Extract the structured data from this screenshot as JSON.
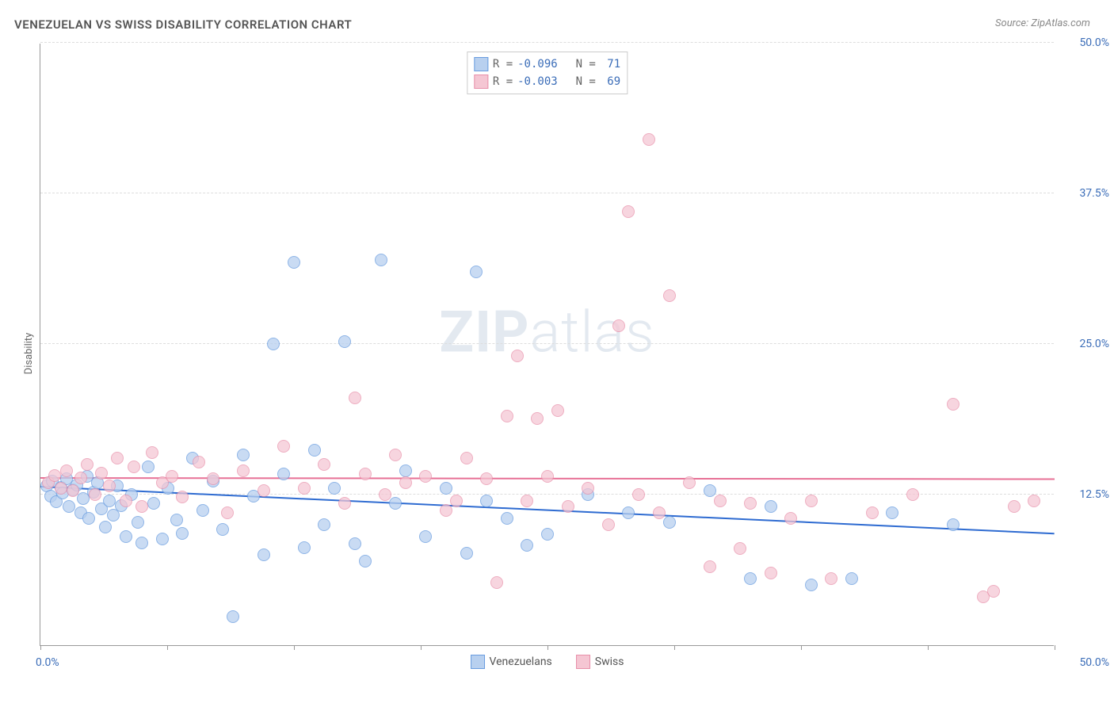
{
  "title": "VENEZUELAN VS SWISS DISABILITY CORRELATION CHART",
  "source": "Source: ZipAtlas.com",
  "yaxis_label": "Disability",
  "watermark_bold": "ZIP",
  "watermark_light": "atlas",
  "chart": {
    "type": "scatter",
    "xlim": [
      0,
      50
    ],
    "ylim": [
      0,
      50
    ],
    "x_min_label": "0.0%",
    "x_max_label": "50.0%",
    "y_ticks": [
      12.5,
      25.0,
      37.5,
      50.0
    ],
    "y_tick_labels": [
      "12.5%",
      "25.0%",
      "37.5%",
      "50.0%"
    ],
    "x_tick_positions": [
      0,
      6.25,
      12.5,
      18.75,
      25,
      31.25,
      37.5,
      43.75,
      50
    ],
    "grid_color": "#dddddd",
    "axis_color": "#999999",
    "background_color": "#ffffff",
    "marker_radius": 8,
    "marker_stroke_width": 1.2,
    "series": [
      {
        "name": "Venezuelans",
        "fill": "#b8d0ef",
        "stroke": "#6a9de0",
        "opacity": 0.75,
        "R": "-0.096",
        "N": "71",
        "trend": {
          "color": "#2e6bd1",
          "y_at_x0": 13.1,
          "y_at_xmax": 9.2
        },
        "points": [
          [
            0.3,
            13.2
          ],
          [
            0.5,
            12.4
          ],
          [
            0.6,
            13.6
          ],
          [
            0.8,
            11.9
          ],
          [
            1.0,
            13.1
          ],
          [
            1.1,
            12.6
          ],
          [
            1.3,
            13.8
          ],
          [
            1.4,
            11.5
          ],
          [
            1.6,
            12.9
          ],
          [
            1.8,
            13.3
          ],
          [
            2.0,
            11.0
          ],
          [
            2.1,
            12.2
          ],
          [
            2.3,
            14.0
          ],
          [
            2.4,
            10.5
          ],
          [
            2.6,
            12.7
          ],
          [
            2.8,
            13.5
          ],
          [
            3.0,
            11.3
          ],
          [
            3.2,
            9.8
          ],
          [
            3.4,
            12.0
          ],
          [
            3.6,
            10.8
          ],
          [
            3.8,
            13.2
          ],
          [
            4.0,
            11.6
          ],
          [
            4.2,
            9.0
          ],
          [
            4.5,
            12.5
          ],
          [
            4.8,
            10.2
          ],
          [
            5.0,
            8.5
          ],
          [
            5.3,
            14.8
          ],
          [
            5.6,
            11.8
          ],
          [
            6.0,
            8.8
          ],
          [
            6.3,
            13.0
          ],
          [
            6.7,
            10.4
          ],
          [
            7.0,
            9.3
          ],
          [
            7.5,
            15.5
          ],
          [
            8.0,
            11.2
          ],
          [
            8.5,
            13.6
          ],
          [
            9.0,
            9.6
          ],
          [
            9.5,
            2.4
          ],
          [
            10.0,
            15.8
          ],
          [
            10.5,
            12.4
          ],
          [
            11.0,
            7.5
          ],
          [
            11.5,
            25.0
          ],
          [
            12.0,
            14.2
          ],
          [
            12.5,
            31.8
          ],
          [
            13.0,
            8.1
          ],
          [
            13.5,
            16.2
          ],
          [
            14.0,
            10.0
          ],
          [
            14.5,
            13.0
          ],
          [
            15.0,
            25.2
          ],
          [
            15.5,
            8.4
          ],
          [
            16.0,
            7.0
          ],
          [
            16.8,
            32.0
          ],
          [
            17.5,
            11.8
          ],
          [
            18.0,
            14.5
          ],
          [
            19.0,
            9.0
          ],
          [
            20.0,
            13.0
          ],
          [
            21.0,
            7.6
          ],
          [
            21.5,
            31.0
          ],
          [
            22.0,
            12.0
          ],
          [
            23.0,
            10.5
          ],
          [
            24.0,
            8.3
          ],
          [
            25.0,
            9.2
          ],
          [
            27.0,
            12.5
          ],
          [
            29.0,
            11.0
          ],
          [
            31.0,
            10.2
          ],
          [
            33.0,
            12.8
          ],
          [
            35.0,
            5.5
          ],
          [
            36.0,
            11.5
          ],
          [
            38.0,
            5.0
          ],
          [
            40.0,
            5.5
          ],
          [
            42.0,
            11.0
          ],
          [
            45.0,
            10.0
          ]
        ]
      },
      {
        "name": "Swiss",
        "fill": "#f5c6d3",
        "stroke": "#e890aa",
        "opacity": 0.72,
        "R": "-0.003",
        "N": "69",
        "trend": {
          "color": "#e77196",
          "y_at_x0": 13.8,
          "y_at_xmax": 13.7
        },
        "points": [
          [
            0.4,
            13.5
          ],
          [
            0.7,
            14.1
          ],
          [
            1.0,
            13.0
          ],
          [
            1.3,
            14.5
          ],
          [
            1.6,
            12.8
          ],
          [
            2.0,
            13.9
          ],
          [
            2.3,
            15.0
          ],
          [
            2.7,
            12.5
          ],
          [
            3.0,
            14.3
          ],
          [
            3.4,
            13.2
          ],
          [
            3.8,
            15.5
          ],
          [
            4.2,
            12.0
          ],
          [
            4.6,
            14.8
          ],
          [
            5.0,
            11.5
          ],
          [
            5.5,
            16.0
          ],
          [
            6.0,
            13.5
          ],
          [
            6.5,
            14.0
          ],
          [
            7.0,
            12.3
          ],
          [
            7.8,
            15.2
          ],
          [
            8.5,
            13.8
          ],
          [
            9.2,
            11.0
          ],
          [
            10.0,
            14.5
          ],
          [
            11.0,
            12.8
          ],
          [
            12.0,
            16.5
          ],
          [
            13.0,
            13.0
          ],
          [
            14.0,
            15.0
          ],
          [
            15.0,
            11.8
          ],
          [
            15.5,
            20.5
          ],
          [
            16.0,
            14.2
          ],
          [
            17.0,
            12.5
          ],
          [
            17.5,
            15.8
          ],
          [
            18.0,
            13.5
          ],
          [
            19.0,
            14.0
          ],
          [
            20.0,
            11.2
          ],
          [
            20.5,
            12.0
          ],
          [
            21.0,
            15.5
          ],
          [
            22.0,
            13.8
          ],
          [
            22.5,
            5.2
          ],
          [
            23.0,
            19.0
          ],
          [
            23.5,
            24.0
          ],
          [
            24.0,
            12.0
          ],
          [
            24.5,
            18.8
          ],
          [
            25.0,
            14.0
          ],
          [
            25.5,
            19.5
          ],
          [
            26.0,
            11.5
          ],
          [
            27.0,
            13.0
          ],
          [
            28.0,
            10.0
          ],
          [
            28.5,
            26.5
          ],
          [
            29.0,
            36.0
          ],
          [
            29.5,
            12.5
          ],
          [
            30.0,
            42.0
          ],
          [
            30.5,
            11.0
          ],
          [
            31.0,
            29.0
          ],
          [
            32.0,
            13.5
          ],
          [
            33.0,
            6.5
          ],
          [
            33.5,
            12.0
          ],
          [
            34.5,
            8.0
          ],
          [
            35.0,
            11.8
          ],
          [
            36.0,
            6.0
          ],
          [
            37.0,
            10.5
          ],
          [
            38.0,
            12.0
          ],
          [
            39.0,
            5.5
          ],
          [
            41.0,
            11.0
          ],
          [
            43.0,
            12.5
          ],
          [
            45.0,
            20.0
          ],
          [
            46.5,
            4.0
          ],
          [
            47.0,
            4.5
          ],
          [
            48.0,
            11.5
          ],
          [
            49.0,
            12.0
          ]
        ]
      }
    ],
    "bottom_legend": {
      "items": [
        {
          "label": "Venezuelans",
          "fill": "#b8d0ef",
          "stroke": "#6a9de0"
        },
        {
          "label": "Swiss",
          "fill": "#f5c6d3",
          "stroke": "#e890aa"
        }
      ]
    }
  }
}
